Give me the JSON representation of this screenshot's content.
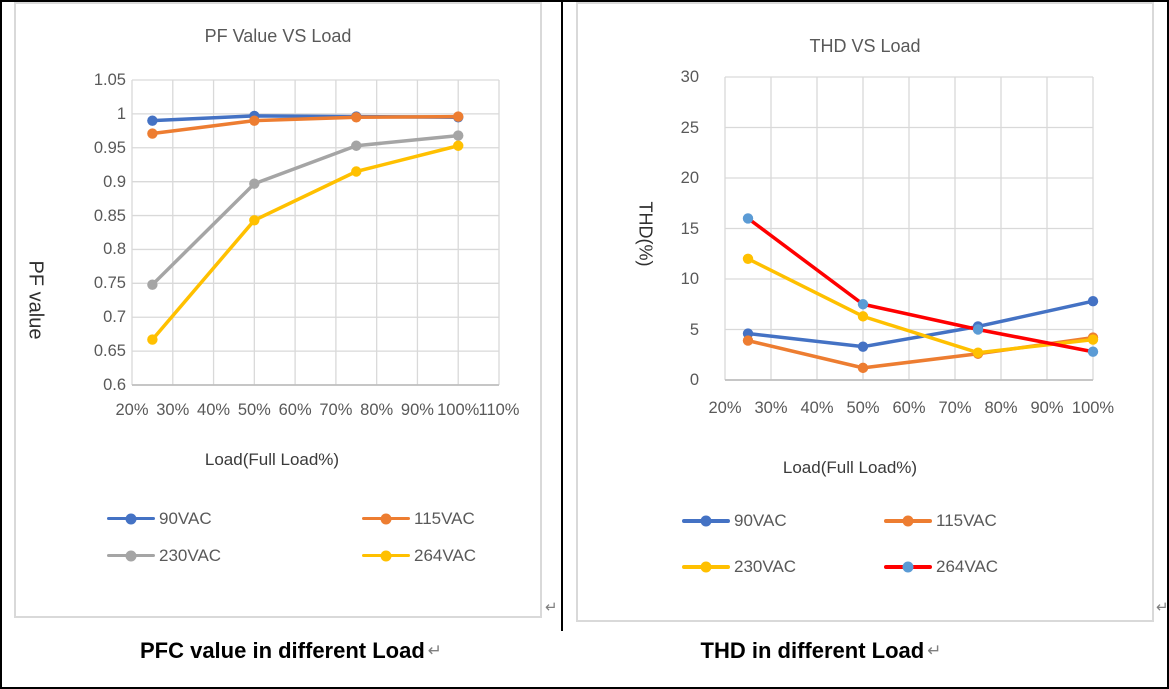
{
  "marks": {
    "return_mark": "↵"
  },
  "captions": [
    {
      "text": "PFC value in different Load"
    },
    {
      "text": "THD in different Load"
    }
  ],
  "colors": {
    "table_border": "#000000",
    "frame_border": "#D9D9D9",
    "gridline": "#D9D9D9",
    "axis_line": "#BFBFBF",
    "tick_text": "#595959",
    "title_text": "#595959",
    "axis_title_text": "#3A3A3A",
    "caption_text": "#000000",
    "return_mark": "#7F7F7F",
    "series_blue": "#4472C4",
    "series_orange": "#ED7D31",
    "series_gray": "#A5A5A5",
    "series_gold": "#FFC000",
    "series_red": "#FF0000",
    "series_lightblue_marker": "#5B9BD5"
  },
  "chart_data": [
    {
      "type": "line",
      "title": "PF Value VS Load",
      "xlabel": "Load(Full Load%)",
      "ylabel": "PF value",
      "xlim": [
        20,
        110
      ],
      "ylim": [
        0.6,
        1.05
      ],
      "grid": true,
      "legend_position": "bottom",
      "x_tick_values": [
        20,
        30,
        40,
        50,
        60,
        70,
        80,
        90,
        100,
        110
      ],
      "x_tick_labels": [
        "20%",
        "30%",
        "40%",
        "50%",
        "60%",
        "70%",
        "80%",
        "90%",
        "100%",
        "110%"
      ],
      "y_tick_values": [
        0.6,
        0.65,
        0.7,
        0.75,
        0.8,
        0.85,
        0.9,
        0.95,
        1,
        1.05
      ],
      "y_tick_labels": [
        "0.6",
        "0.65",
        "0.7",
        "0.75",
        "0.8",
        "0.85",
        "0.9",
        "0.95",
        "1",
        "1.05"
      ],
      "x": [
        25,
        50,
        75,
        100
      ],
      "series": [
        {
          "name": "90VAC",
          "color": "#4472C4",
          "values": [
            0.99,
            0.997,
            0.996,
            0.995
          ]
        },
        {
          "name": "115VAC",
          "color": "#ED7D31",
          "values": [
            0.971,
            0.99,
            0.995,
            0.996
          ]
        },
        {
          "name": "230VAC",
          "color": "#A5A5A5",
          "values": [
            0.748,
            0.897,
            0.953,
            0.968
          ]
        },
        {
          "name": "264VAC",
          "color": "#FFC000",
          "values": [
            0.667,
            0.843,
            0.915,
            0.953
          ]
        }
      ]
    },
    {
      "type": "line",
      "title": "THD VS Load",
      "xlabel": "Load(Full Load%)",
      "ylabel": "THD(%)",
      "xlim": [
        20,
        100
      ],
      "ylim": [
        0,
        30
      ],
      "grid": true,
      "legend_position": "bottom",
      "x_tick_values": [
        20,
        30,
        40,
        50,
        60,
        70,
        80,
        90,
        100
      ],
      "x_tick_labels": [
        "20%",
        "30%",
        "40%",
        "50%",
        "60%",
        "70%",
        "80%",
        "90%",
        "100%"
      ],
      "y_tick_values": [
        0,
        5,
        10,
        15,
        20,
        25,
        30
      ],
      "y_tick_labels": [
        "0",
        "5",
        "10",
        "15",
        "20",
        "25",
        "30"
      ],
      "x": [
        25,
        50,
        75,
        100
      ],
      "series": [
        {
          "name": "90VAC",
          "color": "#4472C4",
          "values": [
            4.6,
            3.3,
            5.3,
            7.8
          ]
        },
        {
          "name": "115VAC",
          "color": "#ED7D31",
          "values": [
            3.9,
            1.2,
            2.6,
            4.2
          ]
        },
        {
          "name": "230VAC",
          "color": "#FFC000",
          "values": [
            12.0,
            6.3,
            2.7,
            4.0
          ]
        },
        {
          "name": "264VAC",
          "color": "#FF0000",
          "marker_color": "#5B9BD5",
          "values": [
            16.0,
            7.5,
            5.0,
            2.8
          ]
        }
      ]
    }
  ]
}
